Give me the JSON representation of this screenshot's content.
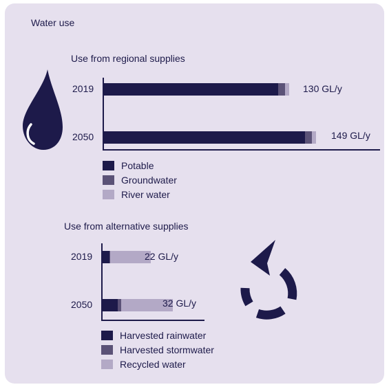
{
  "card_title": "Water use",
  "colors": {
    "card_bg": "#e6e0ee",
    "dark": "#1d1a4a",
    "mid": "#5b5277",
    "light": "#b3a9c6"
  },
  "icons": {
    "drop": "water-drop-icon",
    "recycle": "recycle-arrow-icon"
  },
  "chart_data": [
    {
      "type": "bar",
      "orientation": "horizontal",
      "stacked": true,
      "title": "Use from regional supplies",
      "categories": [
        "2019",
        "2050"
      ],
      "series": [
        {
          "name": "Potable",
          "color": "#1d1a4a",
          "values": [
            122,
            141
          ]
        },
        {
          "name": "Groundwater",
          "color": "#5b5277",
          "values": [
            5,
            5
          ]
        },
        {
          "name": "River water",
          "color": "#b3a9c6",
          "values": [
            3,
            3
          ]
        }
      ],
      "totals": [
        "130 GL/y",
        "149 GL/y"
      ],
      "legend": [
        "Potable",
        "Groundwater",
        "River water"
      ]
    },
    {
      "type": "bar",
      "orientation": "horizontal",
      "stacked": true,
      "title": "Use from alternative supplies",
      "categories": [
        "2019",
        "2050"
      ],
      "series": [
        {
          "name": "Harvested rainwater",
          "color": "#1d1a4a",
          "values": [
            3,
            7
          ]
        },
        {
          "name": "Harvested stormwater",
          "color": "#5b5277",
          "values": [
            0.5,
            1.5
          ]
        },
        {
          "name": "Recycled water",
          "color": "#b3a9c6",
          "values": [
            18.5,
            23.5
          ]
        }
      ],
      "totals": [
        "22 GL/y",
        "32 GL/y"
      ],
      "legend": [
        "Harvested rainwater",
        "Harvested stormwater",
        "Recycled water"
      ]
    }
  ]
}
